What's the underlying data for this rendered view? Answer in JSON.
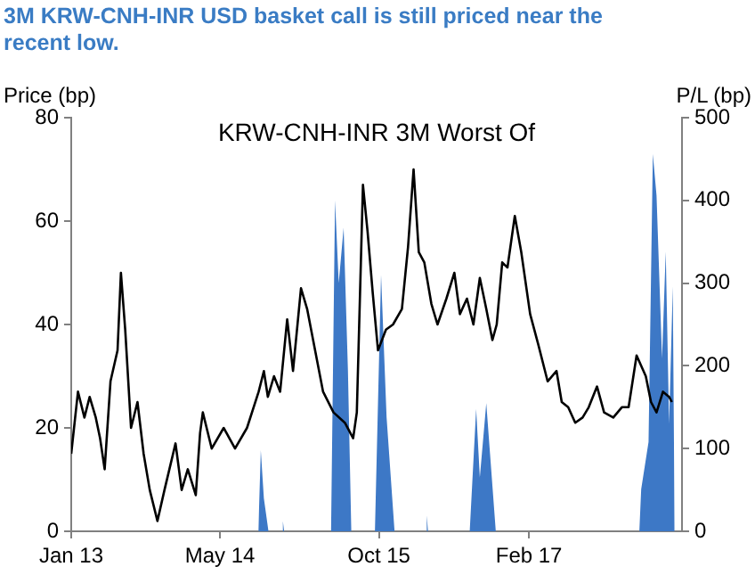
{
  "chart_data": {
    "type": "line",
    "title": "3M KRW-CNH-INR USD basket call is still priced near the recent low.",
    "subtitle": "KRW-CNH-INR 3M Worst Of",
    "ylabel": "Price (bp)",
    "y2label": "P/L (bp)",
    "xlim": [
      "2013-01-01",
      "2018-06-15"
    ],
    "xticks": [
      {
        "value": "2013-01-01",
        "label": "Jan 13"
      },
      {
        "value": "2014-05-01",
        "label": "May 14"
      },
      {
        "value": "2015-10-01",
        "label": "Oct 15"
      },
      {
        "value": "2017-02-01",
        "label": "Feb 17"
      }
    ],
    "ylim": [
      0,
      80
    ],
    "yticks": [
      0,
      20,
      40,
      60,
      80
    ],
    "y2lim": [
      0,
      500
    ],
    "y2ticks": [
      0,
      100,
      200,
      300,
      400,
      500
    ],
    "grid": false,
    "legend": false,
    "marker": "none",
    "line_style": "solid",
    "series": [
      {
        "type": "area",
        "axis": "y2",
        "color": "#3d78c6",
        "x": [
          "2014-09-03",
          "2014-09-11",
          "2014-09-21",
          "2014-10-06",
          "2014-11-19",
          "2014-11-22",
          "2014-11-26",
          "2015-04-28",
          "2015-05-11",
          "2015-05-23",
          "2015-06-08",
          "2015-06-22",
          "2015-07-03",
          "2015-09-18",
          "2015-10-08",
          "2015-10-26",
          "2015-11-21",
          "2016-03-02",
          "2016-03-05",
          "2016-03-09",
          "2016-07-23",
          "2016-08-13",
          "2016-08-25",
          "2016-09-15",
          "2016-10-16",
          "2018-01-27",
          "2018-02-02",
          "2018-02-26",
          "2018-03-12",
          "2018-03-24",
          "2018-04-11",
          "2018-04-23",
          "2018-05-04",
          "2018-05-16",
          "2018-05-22"
        ],
        "values": [
          0,
          98,
          40,
          0,
          0,
          12,
          0,
          0,
          400,
          300,
          367,
          195,
          0,
          0,
          310,
          138,
          0,
          0,
          19,
          0,
          0,
          148,
          65,
          155,
          0,
          0,
          51,
          108,
          456,
          406,
          209,
          338,
          130,
          296,
          0
        ]
      },
      {
        "axis": "y",
        "color": "#000000",
        "x": [
          "2013-01-01",
          "2013-01-12",
          "2013-01-23",
          "2013-02-13",
          "2013-03-02",
          "2013-03-22",
          "2013-04-05",
          "2013-04-20",
          "2013-05-09",
          "2013-06-01",
          "2013-06-12",
          "2013-06-26",
          "2013-07-15",
          "2013-08-05",
          "2013-08-25",
          "2013-09-14",
          "2013-10-09",
          "2013-11-01",
          "2013-11-21",
          "2013-12-07",
          "2013-12-27",
          "2014-01-16",
          "2014-02-11",
          "2014-02-25",
          "2014-03-06",
          "2014-04-04",
          "2014-05-13",
          "2014-06-19",
          "2014-07-28",
          "2014-09-04",
          "2014-09-21",
          "2014-10-04",
          "2014-10-24",
          "2014-11-13",
          "2014-12-06",
          "2014-12-25",
          "2015-01-20",
          "2015-02-09",
          "2015-03-07",
          "2015-04-02",
          "2015-05-06",
          "2015-06-12",
          "2015-07-09",
          "2015-07-21",
          "2015-08-10",
          "2015-08-25",
          "2015-09-11",
          "2015-09-28",
          "2015-10-24",
          "2015-11-16",
          "2015-12-15",
          "2016-01-04",
          "2016-01-22",
          "2016-02-08",
          "2016-02-26",
          "2016-03-20",
          "2016-04-09",
          "2016-05-08",
          "2016-06-03",
          "2016-06-21",
          "2016-07-14",
          "2016-08-04",
          "2016-08-25",
          "2016-09-15",
          "2016-10-05",
          "2016-10-19",
          "2016-11-06",
          "2016-11-23",
          "2016-12-17",
          "2017-01-07",
          "2017-02-05",
          "2017-03-04",
          "2017-04-03",
          "2017-05-02",
          "2017-05-19",
          "2017-06-09",
          "2017-07-02",
          "2017-07-26",
          "2017-08-15",
          "2017-09-11",
          "2017-10-04",
          "2017-11-03",
          "2017-12-01",
          "2017-12-23",
          "2018-01-18",
          "2018-02-17",
          "2018-03-06",
          "2018-03-24",
          "2018-04-14",
          "2018-05-04",
          "2018-05-13"
        ],
        "values": [
          15,
          21,
          27,
          22,
          26,
          22,
          18,
          12,
          29,
          35,
          50,
          39,
          20,
          25,
          15,
          8,
          2,
          8,
          13,
          17,
          8,
          12,
          7,
          19,
          23,
          16,
          20,
          16,
          20,
          27,
          31,
          26,
          30,
          27,
          41,
          31,
          47,
          43,
          35,
          27,
          23,
          21,
          18,
          23,
          67,
          58,
          46,
          35,
          39,
          40,
          43,
          55,
          70,
          54,
          52,
          44,
          40,
          45,
          50,
          42,
          45,
          40,
          49,
          43,
          37,
          40,
          52,
          51,
          61,
          54,
          42,
          36,
          29,
          31,
          25,
          24,
          21,
          22,
          24,
          28,
          23,
          22,
          24,
          24,
          34,
          30,
          25,
          23,
          27,
          26,
          25
        ]
      }
    ]
  }
}
